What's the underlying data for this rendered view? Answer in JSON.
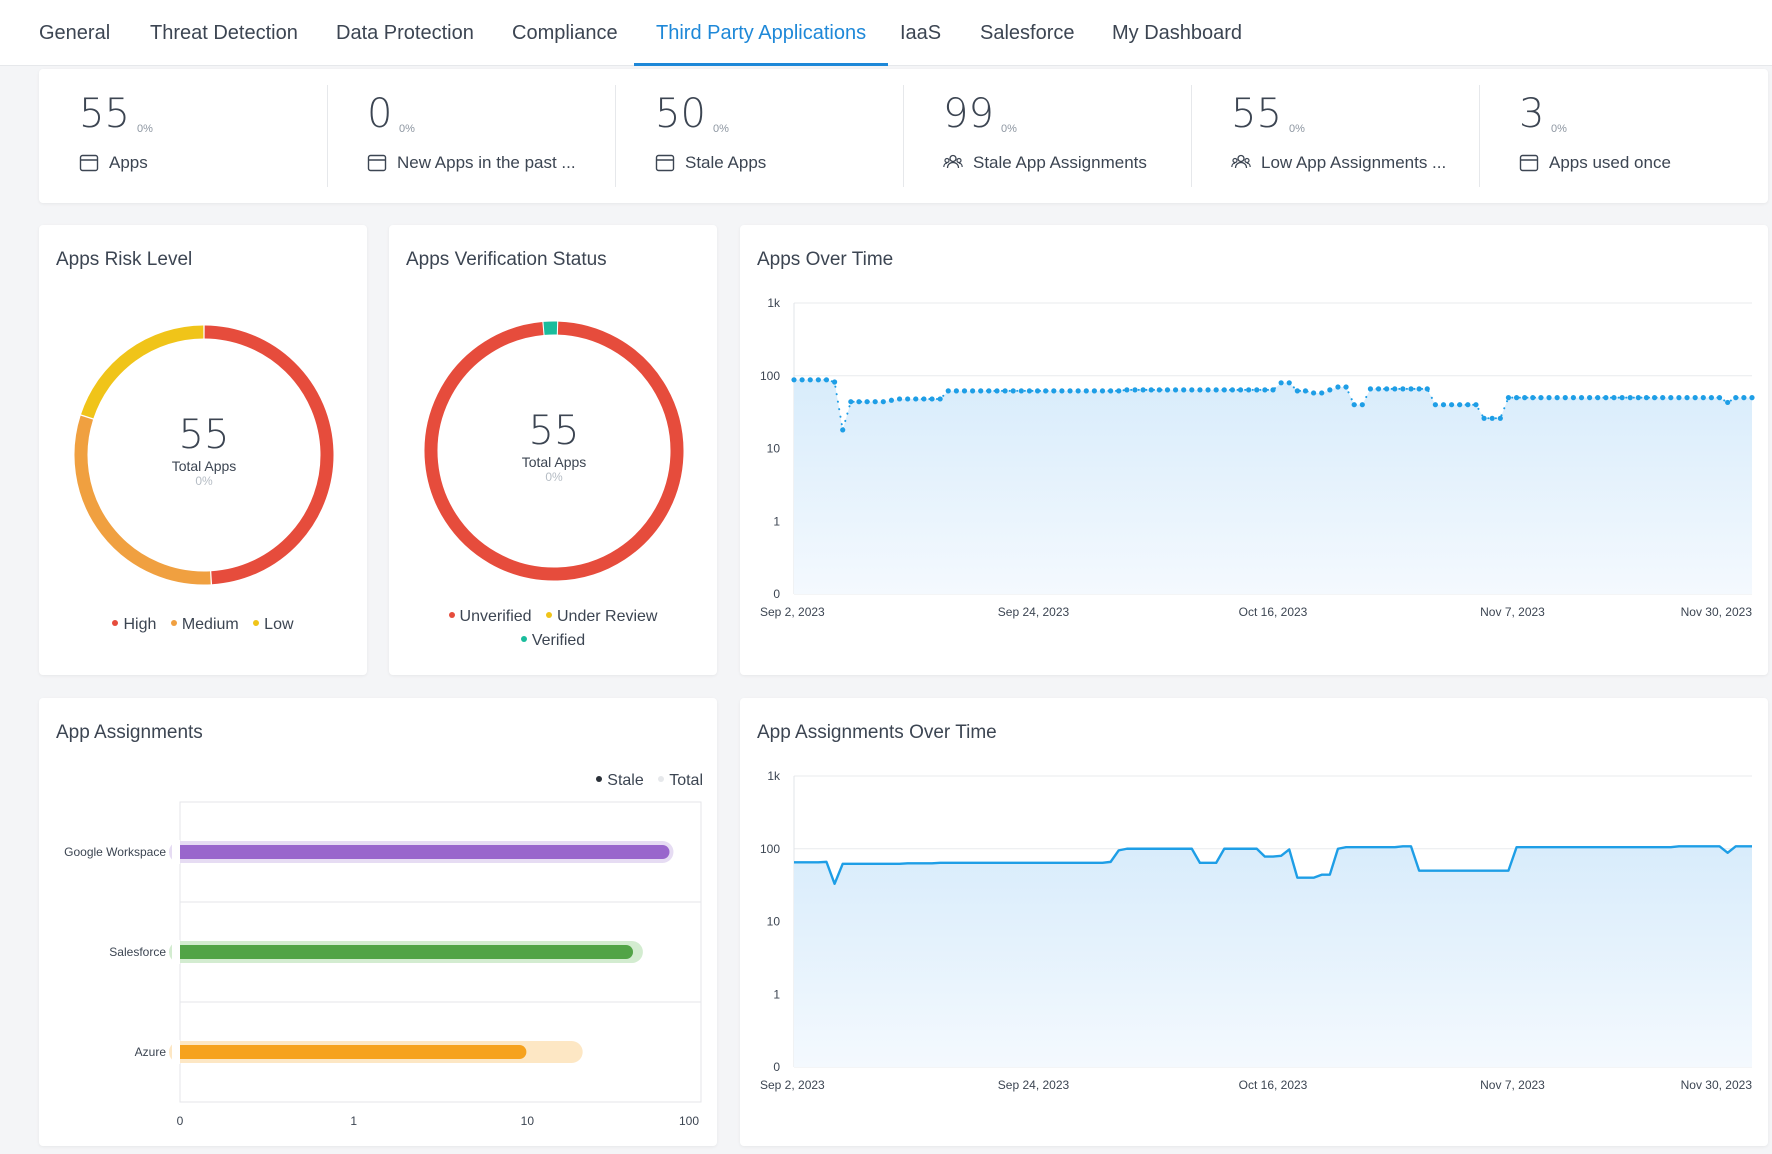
{
  "tabs": [
    {
      "label": "General",
      "active": false
    },
    {
      "label": "Threat Detection",
      "active": false
    },
    {
      "label": "Data Protection",
      "active": false
    },
    {
      "label": "Compliance",
      "active": false
    },
    {
      "label": "Third Party Applications",
      "active": true
    },
    {
      "label": "IaaS",
      "active": false
    },
    {
      "label": "Salesforce",
      "active": false
    },
    {
      "label": "My Dashboard",
      "active": false
    }
  ],
  "stats": [
    {
      "value": "55",
      "pct": "0%",
      "label": "Apps",
      "icon": "window-icon"
    },
    {
      "value": "0",
      "pct": "0%",
      "label": "New Apps in the past ...",
      "icon": "window-icon"
    },
    {
      "value": "50",
      "pct": "0%",
      "label": "Stale Apps",
      "icon": "window-icon"
    },
    {
      "value": "99",
      "pct": "0%",
      "label": "Stale App Assignments",
      "icon": "users-icon"
    },
    {
      "value": "55",
      "pct": "0%",
      "label": "Low App Assignments ...",
      "icon": "users-icon"
    },
    {
      "value": "3",
      "pct": "0%",
      "label": "Apps used once",
      "icon": "window-icon"
    }
  ],
  "risk": {
    "title": "Apps Risk Level",
    "total": "55",
    "total_label": "Total Apps",
    "pct": "0%",
    "segments": [
      {
        "name": "High",
        "value": 27,
        "color": "#e64c3c"
      },
      {
        "name": "Medium",
        "value": 17,
        "color": "#f0a040"
      },
      {
        "name": "Low",
        "value": 11,
        "color": "#f0c419"
      }
    ]
  },
  "verification": {
    "title": "Apps Verification Status",
    "total": "55",
    "total_label": "Total Apps",
    "pct": "0%",
    "segments": [
      {
        "name": "Unverified",
        "value": 54,
        "color": "#e64c3c"
      },
      {
        "name": "Under Review",
        "value": 0,
        "color": "#f0c419"
      },
      {
        "name": "Verified",
        "value": 1,
        "color": "#1abc9c"
      }
    ]
  },
  "apps_over_time": {
    "title": "Apps Over Time",
    "chart_data": {
      "type": "line",
      "scale": "log",
      "y_ticks": [
        "1k",
        "100",
        "10",
        "1",
        "0"
      ],
      "x_ticks": [
        "Sep 2, 2023",
        "Sep 24, 2023",
        "Oct 16, 2023",
        "Nov 7, 2023",
        "Nov 30, 2023"
      ],
      "ylim": [
        0,
        1000
      ],
      "marker": "dots",
      "color": "#1e9ee6",
      "fill": "#e3f2fd",
      "values": [
        88,
        88,
        88,
        88,
        88,
        82,
        18,
        44,
        44,
        44,
        44,
        44,
        46,
        48,
        48,
        48,
        48,
        48,
        48,
        62,
        62,
        62,
        62,
        62,
        62,
        62,
        62,
        62,
        62,
        62,
        62,
        62,
        62,
        62,
        62,
        62,
        62,
        62,
        62,
        62,
        62,
        64,
        64,
        64,
        64,
        64,
        64,
        64,
        64,
        64,
        64,
        64,
        64,
        64,
        64,
        64,
        64,
        64,
        64,
        64,
        80,
        80,
        62,
        62,
        58,
        58,
        64,
        70,
        70,
        40,
        40,
        66,
        66,
        66,
        66,
        66,
        66,
        66,
        66,
        40,
        40,
        40,
        40,
        40,
        40,
        26,
        26,
        26,
        50,
        50,
        50,
        50,
        50,
        50,
        50,
        50,
        50,
        50,
        50,
        50,
        50,
        50,
        50,
        50,
        50,
        50,
        50,
        50,
        50,
        50,
        50,
        50,
        50,
        50,
        50,
        43,
        50,
        50,
        50
      ]
    }
  },
  "app_assignments": {
    "title": "App Assignments",
    "legend": [
      {
        "name": "Stale",
        "color": "#2a3038"
      },
      {
        "name": "Total",
        "color": "#e6e8eb"
      }
    ],
    "chart_data": {
      "type": "bar",
      "orientation": "horizontal",
      "scale": "log",
      "categories": [
        "Google Workspace",
        "Salesforce",
        "Azure"
      ],
      "series": [
        {
          "name": "Stale",
          "values": [
            60,
            37,
            9
          ]
        },
        {
          "name": "Total",
          "values": [
            60,
            40,
            18
          ]
        }
      ],
      "colors": [
        "#9966cc",
        "#52a447",
        "#f6a21e"
      ],
      "x_ticks": [
        "0",
        "1",
        "10",
        "100"
      ]
    }
  },
  "assignments_over_time": {
    "title": "App Assignments Over Time",
    "chart_data": {
      "type": "line",
      "scale": "log",
      "y_ticks": [
        "1k",
        "100",
        "10",
        "1",
        "0"
      ],
      "x_ticks": [
        "Sep 2, 2023",
        "Sep 24, 2023",
        "Oct 16, 2023",
        "Nov 7, 2023",
        "Nov 30, 2023"
      ],
      "ylim": [
        0,
        1000
      ],
      "marker": "none",
      "color": "#1e9ee6",
      "fill": "#e3f2fd",
      "values": [
        65,
        65,
        65,
        65,
        66,
        33,
        62,
        62,
        62,
        62,
        62,
        62,
        62,
        62,
        63,
        63,
        63,
        63,
        64,
        64,
        64,
        64,
        64,
        64,
        64,
        64,
        64,
        64,
        64,
        64,
        64,
        64,
        64,
        64,
        64,
        64,
        64,
        64,
        64,
        66,
        95,
        100,
        100,
        100,
        100,
        100,
        100,
        100,
        100,
        100,
        64,
        64,
        64,
        100,
        100,
        100,
        100,
        100,
        78,
        78,
        80,
        98,
        40,
        40,
        40,
        44,
        44,
        100,
        105,
        105,
        105,
        105,
        105,
        105,
        105,
        108,
        108,
        50,
        50,
        50,
        50,
        50,
        50,
        50,
        50,
        50,
        50,
        50,
        50,
        105,
        105,
        105,
        105,
        105,
        105,
        105,
        105,
        105,
        105,
        105,
        105,
        105,
        105,
        105,
        105,
        105,
        105,
        105,
        105,
        108,
        108,
        108,
        108,
        108,
        108,
        88,
        108,
        108,
        108
      ]
    }
  }
}
